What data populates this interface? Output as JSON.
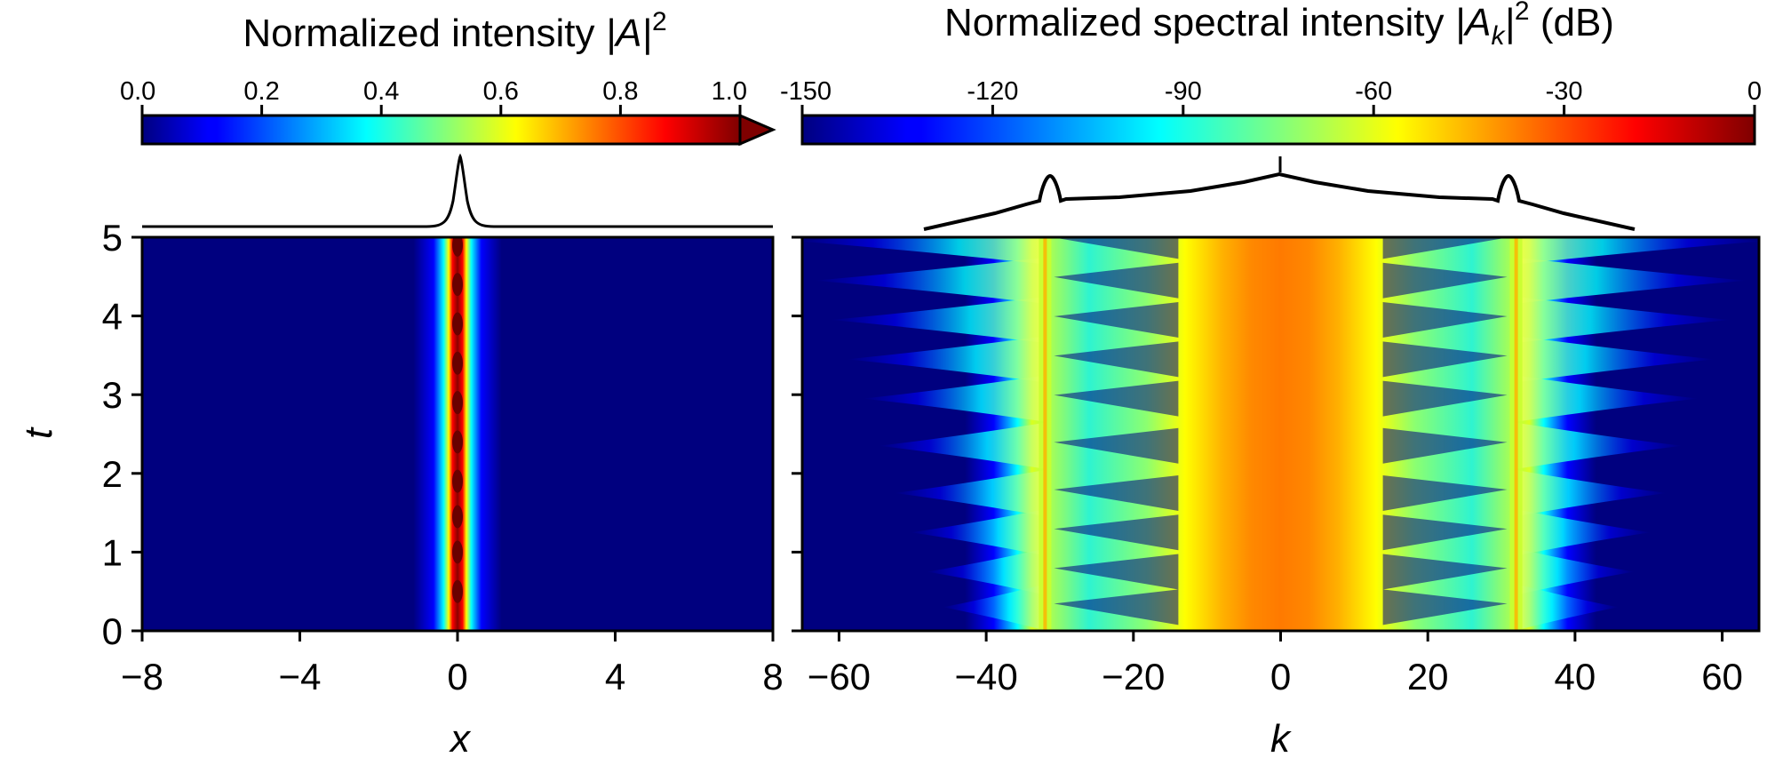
{
  "chart_data": [
    {
      "type": "heatmap",
      "panel": "left",
      "title_text": "Normalized intensity ",
      "title_symbol": "|A|",
      "title_exponent": "2",
      "xlabel": "x",
      "ylabel": "t",
      "xlim": [
        -8,
        8
      ],
      "ylim": [
        0,
        5
      ],
      "xticks": [
        -8,
        -4,
        0,
        4,
        8
      ],
      "xtick_labels": [
        "−8",
        "−4",
        "0",
        "4",
        "8"
      ],
      "yticks": [
        0,
        1,
        2,
        3,
        4,
        5
      ],
      "ytick_labels": [
        "0",
        "1",
        "2",
        "3",
        "4",
        "5"
      ],
      "colorbar": {
        "range": [
          0.0,
          1.0
        ],
        "ticks": [
          0.0,
          0.2,
          0.4,
          0.6,
          0.8,
          1.0
        ],
        "tick_labels": [
          "0.0",
          "0.2",
          "0.4",
          "0.6",
          "0.8",
          "1.0"
        ],
        "extend": "max",
        "colormap": "jet"
      },
      "profile": "single soliton peak centred at x = 0 on a near-flat background",
      "peak_center_x": 0,
      "breathing_maxima_t": [
        0.5,
        1.0,
        1.45,
        1.9,
        2.4,
        2.9,
        3.4,
        3.9,
        4.4,
        4.9
      ]
    },
    {
      "type": "heatmap",
      "panel": "right",
      "title_text": "Normalized spectral intensity ",
      "title_symbol": "|A",
      "title_subscript": "k",
      "title_symbol_end": "|",
      "title_exponent": "2",
      "title_unit": " (dB)",
      "xlabel": "k",
      "xlim": [
        -65,
        65
      ],
      "ylim": [
        0,
        5
      ],
      "xticks": [
        -60,
        -40,
        -20,
        0,
        20,
        40,
        60
      ],
      "xtick_labels": [
        "−60",
        "−40",
        "−20",
        "0",
        "20",
        "40",
        "60"
      ],
      "colorbar": {
        "range": [
          -150,
          0
        ],
        "ticks": [
          -150,
          -120,
          -90,
          -60,
          -30,
          0
        ],
        "tick_labels": [
          "-150",
          "-120",
          "-90",
          "-60",
          "-30",
          "0"
        ],
        "colormap": "jet"
      },
      "resonance_k": [
        -32,
        32
      ],
      "spectrum_profile": "broad central peak at k = 0 with sidebands near k = ±32",
      "band_edge_t": [
        0.3,
        0.75,
        1.25,
        1.75,
        2.35,
        2.95,
        3.45,
        3.95,
        4.45,
        4.95
      ]
    }
  ],
  "colors": {
    "axis": "#000000",
    "background": "#ffffff",
    "jet": [
      "#00007f",
      "#0000ff",
      "#007fff",
      "#00ffff",
      "#7fff7f",
      "#ffff00",
      "#ff7f00",
      "#ff0000",
      "#7f0000"
    ]
  }
}
